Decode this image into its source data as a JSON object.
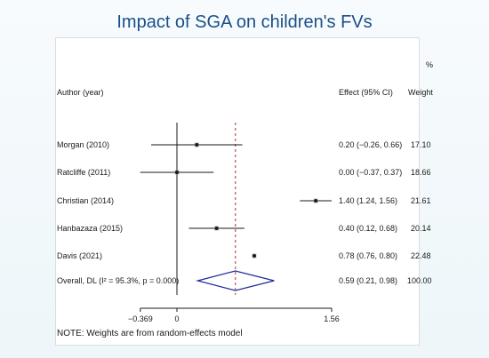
{
  "title": "Impact of SGA on children's FVs",
  "chart_data": {
    "type": "forest",
    "header": {
      "study": "Author (year)",
      "effect": "Effect (95% CI)",
      "weight_top": "%",
      "weight": "Weight"
    },
    "studies": [
      {
        "label": "Morgan (2010)",
        "effect": 0.2,
        "lower": -0.26,
        "upper": 0.66,
        "effect_text": "0.20 (−0.26, 0.66)",
        "weight": "17.10"
      },
      {
        "label": "Ratcliffe (2011)",
        "effect": 0.0,
        "lower": -0.37,
        "upper": 0.37,
        "effect_text": "0.00 (−0.37, 0.37)",
        "weight": "18.66"
      },
      {
        "label": "Christian (2014)",
        "effect": 1.4,
        "lower": 1.24,
        "upper": 1.56,
        "effect_text": "1.40 (1.24, 1.56)",
        "weight": "21.61"
      },
      {
        "label": "Hanbazaza (2015)",
        "effect": 0.4,
        "lower": 0.12,
        "upper": 0.68,
        "effect_text": "0.40 (0.12, 0.68)",
        "weight": "20.14"
      },
      {
        "label": "Davis (2021)",
        "effect": 0.78,
        "lower": 0.76,
        "upper": 0.8,
        "effect_text": "0.78 (0.76, 0.80)",
        "weight": "22.48"
      }
    ],
    "overall": {
      "label": "Overall, DL (I² = 95.3%, p = 0.000)",
      "effect": 0.59,
      "lower": 0.21,
      "upper": 0.98,
      "effect_text": "0.59 (0.21, 0.98)",
      "weight": "100.00"
    },
    "x_ticks": [
      {
        "value": -0.369,
        "label": "−0.369"
      },
      {
        "value": 0,
        "label": "0"
      },
      {
        "value": 1.56,
        "label": "1.56"
      }
    ],
    "xlim": [
      -0.369,
      1.56
    ],
    "note": "NOTE: Weights are from random-effects model"
  }
}
